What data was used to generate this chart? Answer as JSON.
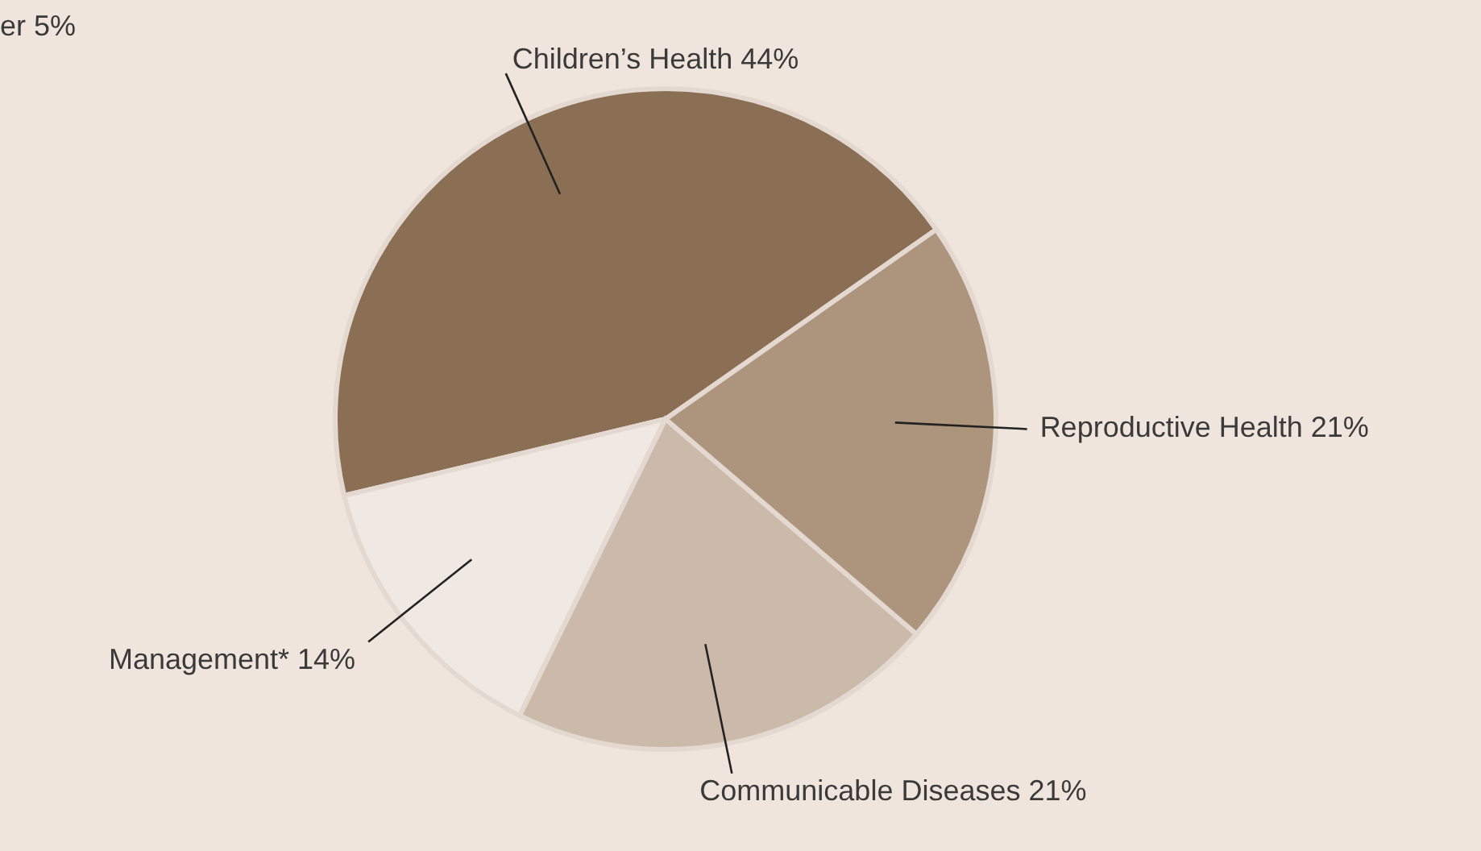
{
  "chart_data": {
    "type": "pie",
    "categories": [
      "Children’s Health",
      "Management*",
      "Communicable Diseases",
      "Reproductive Health"
    ],
    "values": [
      44,
      14,
      21,
      21
    ],
    "value_labels": [
      "44%",
      "14%",
      "21%",
      "21%"
    ],
    "colors": [
      "#8a6f54",
      "#f0e9e3",
      "#cbbaa9",
      "#ad957d"
    ],
    "annotations": [
      "er 5%"
    ],
    "legend": false
  }
}
